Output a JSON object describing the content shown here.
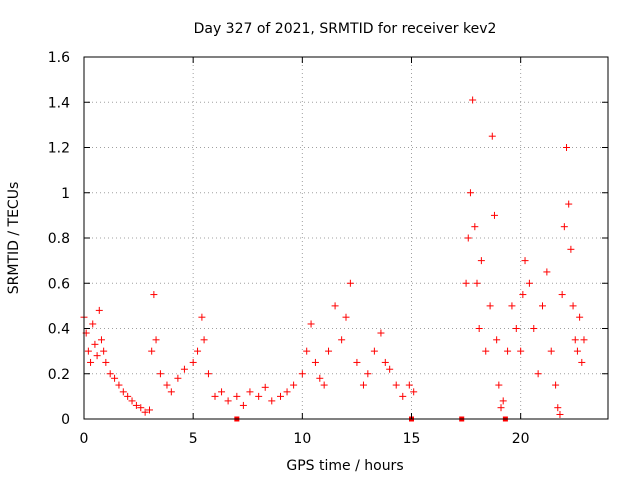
{
  "chart_data": {
    "type": "scatter",
    "title": "Day 327 of 2021, SRMTID for receiver kev2",
    "xlabel": "GPS time / hours",
    "ylabel": "SRMTID / TECUs",
    "xlim": [
      0,
      24
    ],
    "ylim": [
      0,
      1.6
    ],
    "x_ticks": [
      0,
      5,
      10,
      15,
      20
    ],
    "x_tick_labels": [
      "0",
      "5",
      "10",
      "15",
      "20"
    ],
    "y_ticks": [
      0,
      0.2,
      0.4,
      0.6,
      0.8,
      1.0,
      1.2,
      1.4,
      1.6
    ],
    "y_tick_labels": [
      "0",
      "0.2",
      "0.4",
      "0.6",
      "0.8",
      "1",
      "1.2",
      "1.4",
      "1.6"
    ],
    "grid": true,
    "marker": "+",
    "color": "#ff0000",
    "series": [
      {
        "name": "kev2 SRMTID",
        "x": [
          0.0,
          0.1,
          0.2,
          0.3,
          0.4,
          0.5,
          0.6,
          0.7,
          0.8,
          0.9,
          1.0,
          1.2,
          1.4,
          1.6,
          1.8,
          2.0,
          2.2,
          2.4,
          2.6,
          2.8,
          3.0,
          3.1,
          3.2,
          3.3,
          3.5,
          3.8,
          4.0,
          4.3,
          4.6,
          5.0,
          5.2,
          5.4,
          5.5,
          5.7,
          6.0,
          6.3,
          6.6,
          7.0,
          7.3,
          7.6,
          8.0,
          8.3,
          8.6,
          9.0,
          9.3,
          9.6,
          10.0,
          10.2,
          10.4,
          10.6,
          10.8,
          11.0,
          11.2,
          11.5,
          11.8,
          12.0,
          12.2,
          12.5,
          12.8,
          13.0,
          13.3,
          13.6,
          13.8,
          14.0,
          14.3,
          14.6,
          14.9,
          15.1,
          17.5,
          17.6,
          17.7,
          17.8,
          17.9,
          18.0,
          18.1,
          18.2,
          18.4,
          18.6,
          18.7,
          18.8,
          18.9,
          19.0,
          19.1,
          19.2,
          19.4,
          19.6,
          19.8,
          20.0,
          20.1,
          20.2,
          20.4,
          20.6,
          20.8,
          21.0,
          21.2,
          21.4,
          21.6,
          21.7,
          21.8,
          21.9,
          22.0,
          22.1,
          22.2,
          22.3,
          22.4,
          22.5,
          22.6,
          22.7,
          22.8,
          22.9
        ],
        "y": [
          0.45,
          0.38,
          0.3,
          0.25,
          0.42,
          0.33,
          0.28,
          0.48,
          0.35,
          0.3,
          0.25,
          0.2,
          0.18,
          0.15,
          0.12,
          0.1,
          0.08,
          0.06,
          0.05,
          0.03,
          0.04,
          0.3,
          0.55,
          0.35,
          0.2,
          0.15,
          0.12,
          0.18,
          0.22,
          0.25,
          0.3,
          0.45,
          0.35,
          0.2,
          0.1,
          0.12,
          0.08,
          0.1,
          0.06,
          0.12,
          0.1,
          0.14,
          0.08,
          0.1,
          0.12,
          0.15,
          0.2,
          0.3,
          0.42,
          0.25,
          0.18,
          0.15,
          0.3,
          0.5,
          0.35,
          0.45,
          0.6,
          0.25,
          0.15,
          0.2,
          0.3,
          0.38,
          0.25,
          0.22,
          0.15,
          0.1,
          0.15,
          0.12,
          0.6,
          0.8,
          1.0,
          1.41,
          0.85,
          0.6,
          0.4,
          0.7,
          0.3,
          0.5,
          1.25,
          0.9,
          0.35,
          0.15,
          0.05,
          0.08,
          0.3,
          0.5,
          0.4,
          0.3,
          0.55,
          0.7,
          0.6,
          0.4,
          0.2,
          0.5,
          0.65,
          0.3,
          0.15,
          0.05,
          0.02,
          0.55,
          0.85,
          1.2,
          0.95,
          0.75,
          0.5,
          0.35,
          0.3,
          0.45,
          0.25,
          0.35
        ],
        "gap_markers_x": [
          7.0,
          15.0,
          17.3,
          19.3
        ]
      }
    ]
  }
}
